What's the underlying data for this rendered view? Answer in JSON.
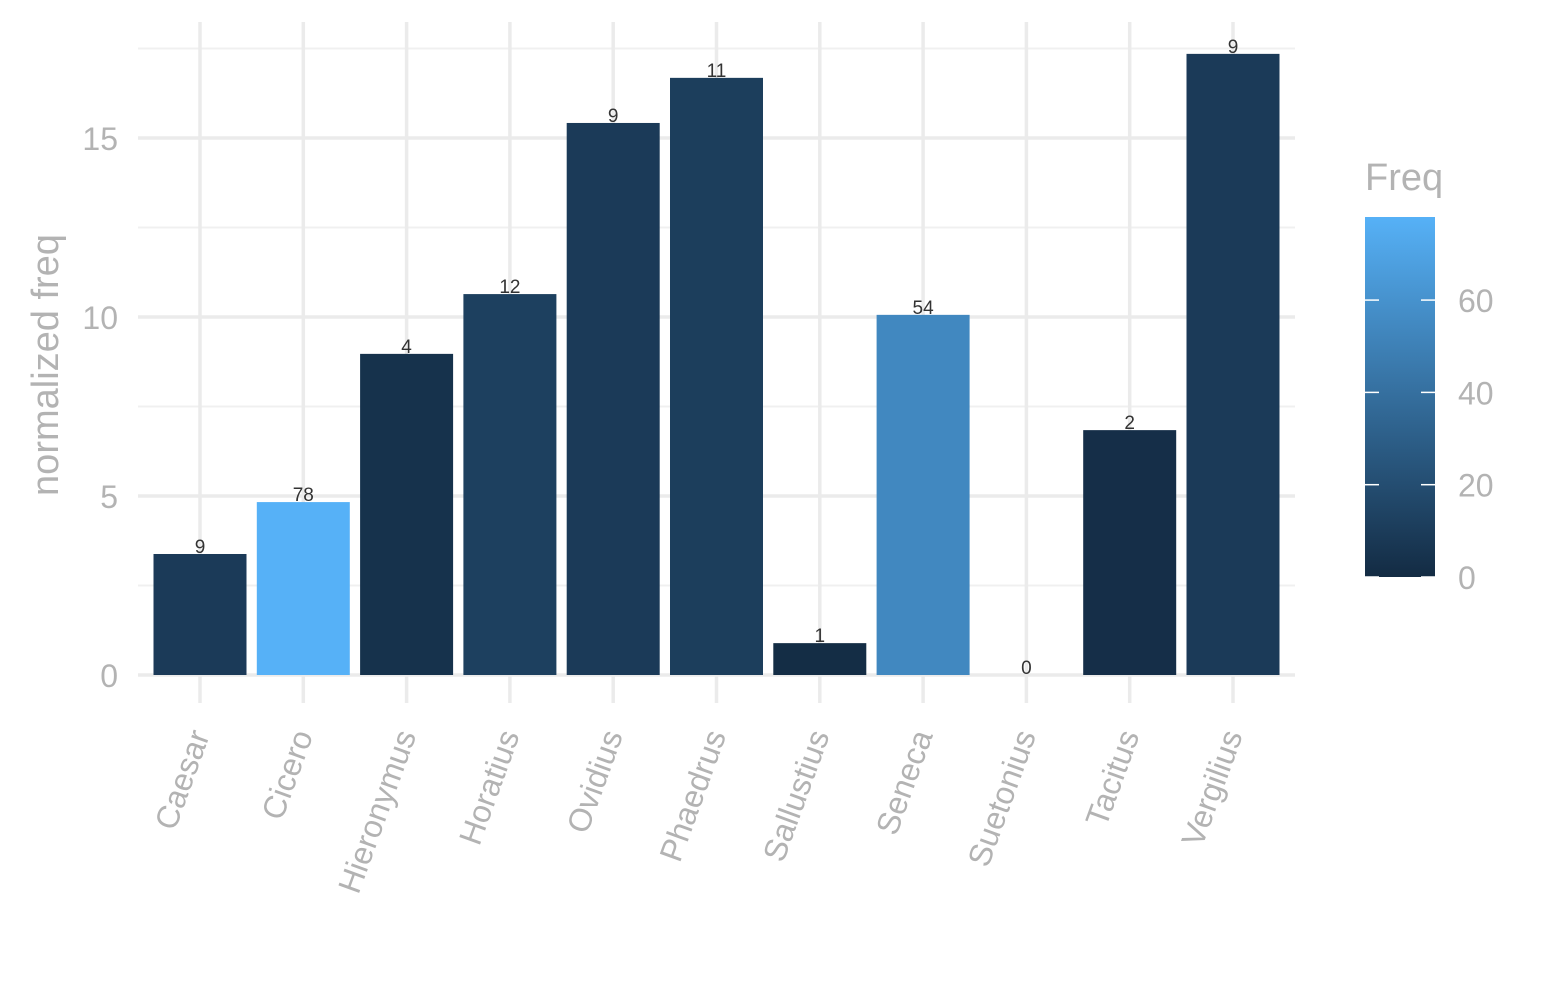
{
  "chart_data": {
    "type": "bar",
    "title": "",
    "xlabel": "",
    "ylabel": "normalized freq",
    "ylim": [
      -1.5,
      18.2
    ],
    "yticks": [
      0,
      5,
      10,
      15
    ],
    "grid": true,
    "categories": [
      "Caesar",
      "Cicero",
      "Hieronymus",
      "Horatius",
      "Ovidius",
      "Phaedrus",
      "Sallustius",
      "Seneca",
      "Suetonius",
      "Tacitus",
      "Vergilius"
    ],
    "values": [
      3.38,
      4.83,
      8.97,
      10.64,
      15.42,
      16.68,
      0.89,
      10.06,
      0,
      6.84,
      17.35
    ],
    "freq": [
      9,
      78,
      4,
      12,
      9,
      11,
      1,
      54,
      0,
      2,
      9
    ],
    "bar_labels": [
      "9",
      "78",
      "4",
      "12",
      "9",
      "11",
      "1",
      "54",
      "0",
      "2",
      "9"
    ],
    "legend": {
      "title": "Freq",
      "placement": "right",
      "range": [
        0,
        78
      ],
      "ticks": [
        0,
        20,
        40,
        60
      ],
      "tick_labels": [
        "0",
        "20",
        "40",
        "60"
      ],
      "low_color": "#132B43",
      "high_color": "#56B1F7"
    }
  }
}
